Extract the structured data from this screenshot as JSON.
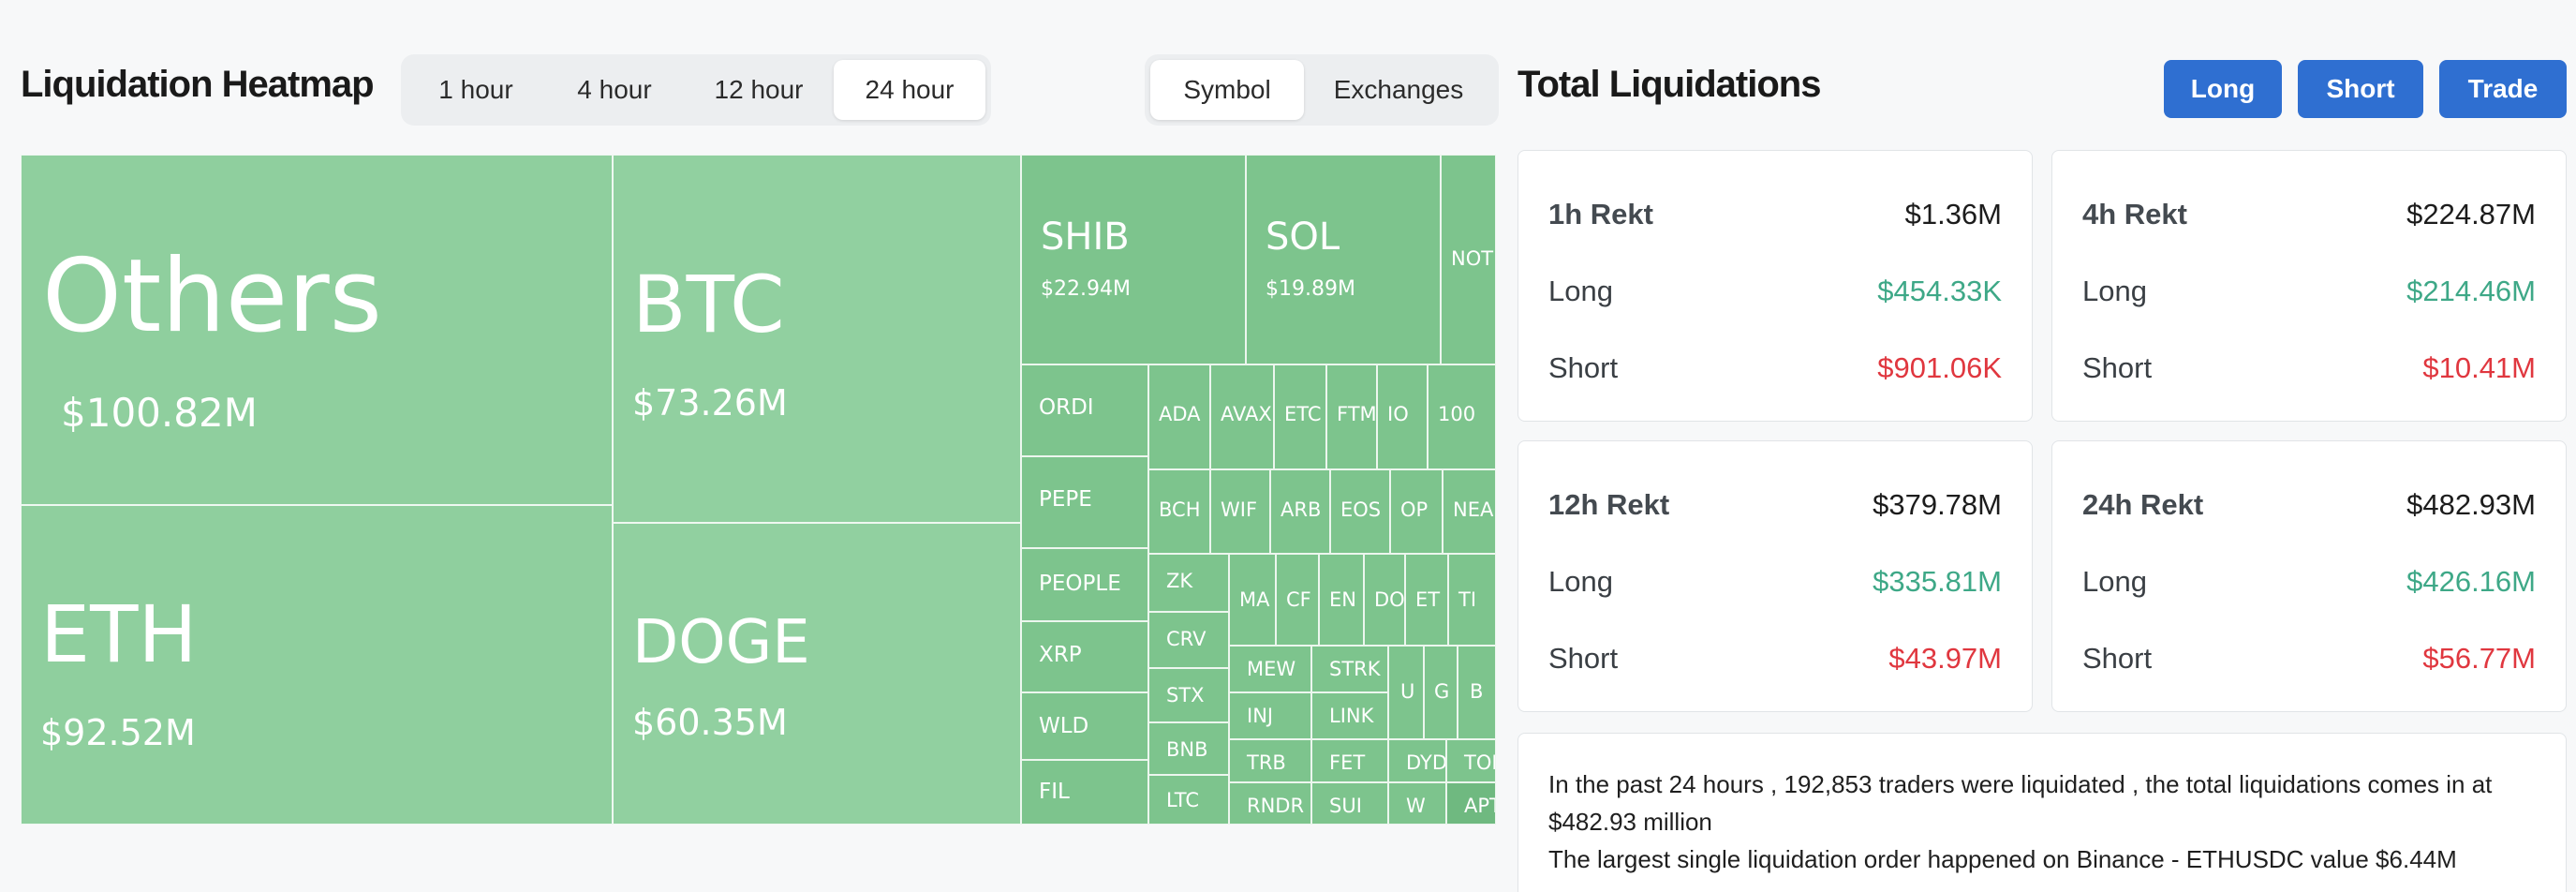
{
  "heatmap": {
    "title": "Liquidation Heatmap",
    "time_options": [
      "1 hour",
      "4 hour",
      "12 hour",
      "24 hour"
    ],
    "time_selected": "24 hour",
    "group_options": [
      "Symbol",
      "Exchanges"
    ],
    "group_selected": "Symbol",
    "tiles": {
      "others": {
        "symbol": "Others",
        "value": "$100.82M"
      },
      "eth": {
        "symbol": "ETH",
        "value": "$92.52M"
      },
      "btc": {
        "symbol": "BTC",
        "value": "$73.26M"
      },
      "doge": {
        "symbol": "DOGE",
        "value": "$60.35M"
      },
      "shib": {
        "symbol": "SHIB",
        "value": "$22.94M"
      },
      "sol": {
        "symbol": "SOL",
        "value": "$19.89M"
      },
      "not": {
        "symbol": "NOT"
      },
      "ordi": {
        "symbol": "ORDI"
      },
      "pepe": {
        "symbol": "PEPE"
      },
      "people": {
        "symbol": "PEOPLE"
      },
      "xrp": {
        "symbol": "XRP"
      },
      "wld": {
        "symbol": "WLD"
      },
      "fil": {
        "symbol": "FIL"
      },
      "ada": {
        "symbol": "ADA"
      },
      "avax": {
        "symbol": "AVAX"
      },
      "etc": {
        "symbol": "ETC"
      },
      "ftm": {
        "symbol": "FTM"
      },
      "io": {
        "symbol": "IO"
      },
      "n1000": {
        "symbol": "100"
      },
      "bch": {
        "symbol": "BCH"
      },
      "wif": {
        "symbol": "WIF"
      },
      "arb": {
        "symbol": "ARB"
      },
      "eos": {
        "symbol": "EOS"
      },
      "op": {
        "symbol": "OP"
      },
      "near": {
        "symbol": "NEA"
      },
      "zk": {
        "symbol": "ZK"
      },
      "crv": {
        "symbol": "CRV"
      },
      "stx": {
        "symbol": "STX"
      },
      "bnb": {
        "symbol": "BNB"
      },
      "ltc": {
        "symbol": "LTC"
      },
      "ma": {
        "symbol": "MA"
      },
      "cf": {
        "symbol": "CF"
      },
      "en": {
        "symbol": "EN"
      },
      "do": {
        "symbol": "DO"
      },
      "et": {
        "symbol": "ET"
      },
      "ti": {
        "symbol": "TI"
      },
      "mew": {
        "symbol": "MEW"
      },
      "strk": {
        "symbol": "STRK"
      },
      "u": {
        "symbol": "U"
      },
      "g": {
        "symbol": "G"
      },
      "b": {
        "symbol": "B"
      },
      "inj": {
        "symbol": "INJ"
      },
      "link": {
        "symbol": "LINK"
      },
      "trb": {
        "symbol": "TRB"
      },
      "fet": {
        "symbol": "FET"
      },
      "dyd": {
        "symbol": "DYD"
      },
      "ton": {
        "symbol": "TON"
      },
      "rndr": {
        "symbol": "RNDR"
      },
      "sui": {
        "symbol": "SUI"
      },
      "w": {
        "symbol": "W"
      },
      "apt": {
        "symbol": "APT"
      }
    }
  },
  "liquidations": {
    "title": "Total Liquidations",
    "buttons": {
      "long": "Long",
      "short": "Short",
      "trade": "Trade"
    },
    "cards": [
      {
        "period": "1h Rekt",
        "total": "$1.36M",
        "long_label": "Long",
        "long": "$454.33K",
        "short_label": "Short",
        "short": "$901.06K"
      },
      {
        "period": "4h Rekt",
        "total": "$224.87M",
        "long_label": "Long",
        "long": "$214.46M",
        "short_label": "Short",
        "short": "$10.41M"
      },
      {
        "period": "12h Rekt",
        "total": "$379.78M",
        "long_label": "Long",
        "long": "$335.81M",
        "short_label": "Short",
        "short": "$43.97M"
      },
      {
        "period": "24h Rekt",
        "total": "$482.93M",
        "long_label": "Long",
        "long": "$426.16M",
        "short_label": "Short",
        "short": "$56.77M"
      }
    ],
    "summary_line1": "In the past 24 hours , 192,853 traders were liquidated , the total liquidations comes in at $482.93 million",
    "summary_line2": "The largest single liquidation order happened on Binance - ETHUSDC value $6.44M"
  },
  "colors": {
    "tile_base": "#8fcf9e",
    "tile_mid": "#7dc48d",
    "tile_dark": "#6fb980",
    "positive": "#3ea887",
    "negative": "#e0373f",
    "button": "#2f6fd1"
  }
}
